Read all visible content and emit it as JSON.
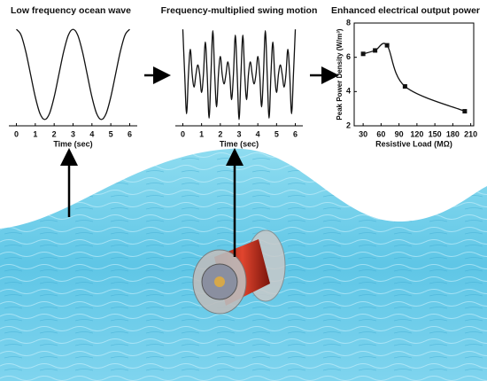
{
  "chart_data": [
    {
      "type": "line",
      "title": "Low frequency ocean wave",
      "x_label": "Time (sec)",
      "x": [
        0,
        0.25,
        0.5,
        0.75,
        1,
        1.25,
        1.5,
        1.75,
        2,
        2.25,
        2.5,
        2.75,
        3,
        3.25,
        3.5,
        3.75,
        4,
        4.25,
        4.5,
        4.75,
        5,
        5.25,
        5.5,
        5.75,
        6
      ],
      "values": [
        1,
        0.87,
        0.5,
        0,
        -0.5,
        -0.87,
        -1,
        -0.87,
        -0.5,
        0,
        0.5,
        0.87,
        1,
        0.87,
        0.5,
        0,
        -0.5,
        -0.87,
        -1,
        -0.87,
        -0.5,
        0,
        0.5,
        0.87,
        1
      ],
      "color": "#111111",
      "xlim": [
        -0.4,
        6.4
      ],
      "xticks": [
        0,
        1,
        2,
        3,
        4,
        5,
        6
      ],
      "ylim": [
        -1.1,
        1.1
      ]
    },
    {
      "type": "line",
      "title": "Frequency-multiplied swing motion",
      "x_label": "Time (sec)",
      "x": [
        0,
        0.1,
        0.2,
        0.3,
        0.4,
        0.5,
        0.6,
        0.7,
        0.8,
        0.9,
        1,
        1.1,
        1.2,
        1.3,
        1.4,
        1.5,
        1.6,
        1.7,
        1.8,
        1.9,
        2,
        2.1,
        2.2,
        2.3,
        2.4,
        2.5,
        2.6,
        2.7,
        2.8,
        2.9,
        3,
        3.1,
        3.2,
        3.3,
        3.4,
        3.5,
        3.6,
        3.7,
        3.8,
        3.9,
        4,
        4.1,
        4.2,
        4.3,
        4.4,
        4.5,
        4.6,
        4.7,
        4.8,
        4.9,
        5,
        5.1,
        5.2,
        5.3,
        5.4,
        5.5,
        5.6,
        5.7,
        5.8,
        5.9,
        6
      ],
      "values": [
        1,
        0,
        -0.87,
        0,
        0.56,
        0,
        -0.28,
        0,
        0.21,
        0,
        -0.4,
        0,
        0.72,
        0,
        -0.97,
        0,
        0.97,
        0,
        -0.72,
        0,
        0.4,
        0,
        -0.21,
        0,
        0.28,
        0,
        -0.56,
        0,
        0.87,
        0,
        -1,
        0,
        0.87,
        0,
        -0.56,
        0,
        0.28,
        0,
        -0.21,
        0,
        0.4,
        0,
        -0.72,
        0,
        0.97,
        0,
        -0.97,
        0,
        0.72,
        0,
        -0.4,
        0,
        0.21,
        0,
        -0.28,
        0,
        0.56,
        0,
        -0.87,
        0,
        1
      ],
      "color": "#111111",
      "xlim": [
        -0.4,
        6.4
      ],
      "xticks": [
        0,
        1,
        2,
        3,
        4,
        5,
        6
      ],
      "ylim": [
        -1.1,
        1.1
      ]
    },
    {
      "type": "line",
      "title": "Enhanced electrical output power",
      "x_label": "Resistive Load (MΩ)",
      "y_label": "Peak Power Density (W/m³)",
      "x": [
        30,
        50,
        70,
        100,
        200
      ],
      "values": [
        6.2,
        6.4,
        6.7,
        4.3,
        2.85
      ],
      "color": "#111111",
      "marker": "square",
      "frame": true,
      "xlim": [
        15,
        215
      ],
      "xticks": [
        30,
        60,
        90,
        120,
        150,
        180,
        210
      ],
      "ylim": [
        2,
        8
      ],
      "yticks": [
        2,
        4,
        6,
        8
      ]
    }
  ]
}
